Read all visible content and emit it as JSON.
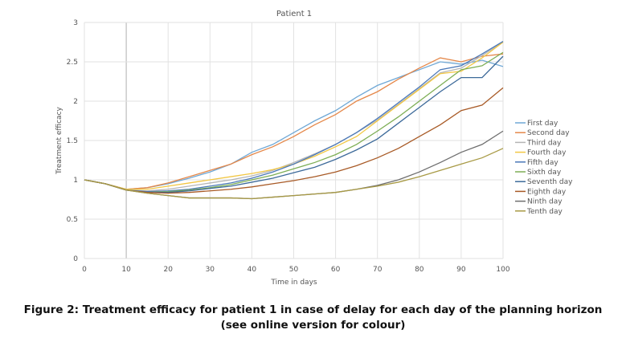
{
  "chart_data": {
    "type": "line",
    "title": "Patient 1",
    "xlabel": "Time in days",
    "ylabel": "Treatment efficacy",
    "xlim": [
      0,
      100
    ],
    "ylim": [
      0,
      3
    ],
    "xticks": [
      "0",
      "10",
      "20",
      "30",
      "40",
      "50",
      "60",
      "70",
      "80",
      "90",
      "100"
    ],
    "yticks": [
      "0",
      "0.5",
      "1",
      "1.5",
      "2",
      "2.5",
      "3"
    ],
    "grid": true,
    "legend_position": "right",
    "x": [
      0,
      5,
      10,
      15,
      20,
      25,
      30,
      35,
      40,
      45,
      50,
      55,
      60,
      65,
      70,
      75,
      80,
      85,
      90,
      95,
      100
    ],
    "series": [
      {
        "name": "First day",
        "color": "#6FA8D6",
        "values": [
          1,
          0.95,
          0.88,
          0.9,
          0.95,
          1.02,
          1.1,
          1.2,
          1.35,
          1.45,
          1.6,
          1.75,
          1.88,
          2.05,
          2.2,
          2.3,
          2.4,
          2.5,
          2.47,
          2.52,
          2.44
        ]
      },
      {
        "name": "Second day",
        "color": "#E5884A",
        "values": [
          1,
          0.95,
          0.88,
          0.9,
          0.96,
          1.04,
          1.12,
          1.2,
          1.32,
          1.42,
          1.55,
          1.7,
          1.83,
          2.0,
          2.12,
          2.28,
          2.42,
          2.55,
          2.5,
          2.57,
          2.6
        ]
      },
      {
        "name": "Third day",
        "color": "#B5B5B5",
        "values": [
          1,
          0.95,
          0.87,
          0.86,
          0.88,
          0.92,
          0.96,
          1.0,
          1.05,
          1.12,
          1.22,
          1.33,
          1.45,
          1.6,
          1.76,
          1.96,
          2.16,
          2.36,
          2.42,
          2.58,
          2.75
        ]
      },
      {
        "name": "Fourth day",
        "color": "#F2C744",
        "values": [
          1,
          0.95,
          0.88,
          0.88,
          0.92,
          0.96,
          1.0,
          1.04,
          1.08,
          1.13,
          1.2,
          1.3,
          1.42,
          1.55,
          1.75,
          1.95,
          2.15,
          2.35,
          2.38,
          2.55,
          2.75
        ]
      },
      {
        "name": "Fifth day",
        "color": "#4A78B8",
        "values": [
          1,
          0.95,
          0.87,
          0.85,
          0.86,
          0.88,
          0.92,
          0.96,
          1.02,
          1.1,
          1.2,
          1.32,
          1.45,
          1.6,
          1.78,
          1.98,
          2.18,
          2.4,
          2.45,
          2.6,
          2.76
        ]
      },
      {
        "name": "Sixth day",
        "color": "#7DAE55",
        "values": [
          1,
          0.95,
          0.87,
          0.84,
          0.85,
          0.87,
          0.9,
          0.94,
          1.0,
          1.06,
          1.14,
          1.22,
          1.32,
          1.45,
          1.62,
          1.8,
          2.0,
          2.2,
          2.4,
          2.45,
          2.62
        ]
      },
      {
        "name": "Seventh day",
        "color": "#3D6A9A",
        "values": [
          1,
          0.95,
          0.87,
          0.84,
          0.84,
          0.86,
          0.89,
          0.92,
          0.97,
          1.02,
          1.09,
          1.16,
          1.26,
          1.38,
          1.52,
          1.72,
          1.92,
          2.12,
          2.3,
          2.3,
          2.57
        ]
      },
      {
        "name": "Eighth day",
        "color": "#A85A26",
        "values": [
          1,
          0.95,
          0.87,
          0.84,
          0.83,
          0.84,
          0.86,
          0.88,
          0.91,
          0.95,
          0.99,
          1.04,
          1.1,
          1.18,
          1.28,
          1.4,
          1.55,
          1.7,
          1.88,
          1.95,
          2.17
        ]
      },
      {
        "name": "Ninth day",
        "color": "#6E6E6E",
        "values": [
          1,
          0.95,
          0.87,
          0.83,
          0.8,
          0.77,
          0.77,
          0.77,
          0.76,
          0.78,
          0.8,
          0.82,
          0.84,
          0.88,
          0.93,
          1.0,
          1.1,
          1.22,
          1.35,
          1.45,
          1.62
        ]
      },
      {
        "name": "Tenth day",
        "color": "#A89A45",
        "values": [
          1,
          0.95,
          0.87,
          0.83,
          0.8,
          0.77,
          0.77,
          0.77,
          0.76,
          0.78,
          0.8,
          0.82,
          0.84,
          0.88,
          0.92,
          0.97,
          1.04,
          1.12,
          1.2,
          1.28,
          1.4
        ]
      }
    ]
  },
  "caption": {
    "line1": "Figure 2: Treatment efficacy for patient 1 in case of delay for each day of the planning horizon",
    "line2": "(see online version for colour)"
  }
}
